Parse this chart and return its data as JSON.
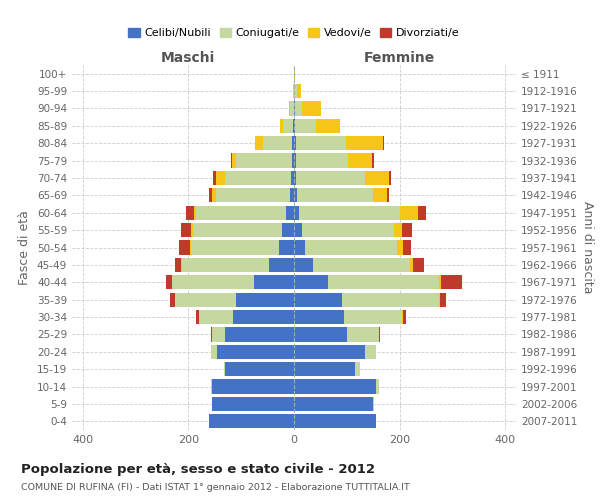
{
  "age_groups": [
    "0-4",
    "5-9",
    "10-14",
    "15-19",
    "20-24",
    "25-29",
    "30-34",
    "35-39",
    "40-44",
    "45-49",
    "50-54",
    "55-59",
    "60-64",
    "65-69",
    "70-74",
    "75-79",
    "80-84",
    "85-89",
    "90-94",
    "95-99",
    "100+"
  ],
  "birth_years": [
    "2007-2011",
    "2002-2006",
    "1997-2001",
    "1992-1996",
    "1987-1991",
    "1982-1986",
    "1977-1981",
    "1972-1976",
    "1967-1971",
    "1962-1966",
    "1957-1961",
    "1952-1956",
    "1947-1951",
    "1942-1946",
    "1937-1941",
    "1932-1936",
    "1927-1931",
    "1922-1926",
    "1917-1921",
    "1912-1916",
    "≤ 1911"
  ],
  "males": {
    "celibe": [
      160,
      155,
      155,
      130,
      145,
      130,
      115,
      110,
      75,
      47,
      29,
      22,
      15,
      8,
      5,
      4,
      3,
      1,
      0,
      0,
      0
    ],
    "coniugato": [
      0,
      0,
      2,
      3,
      12,
      25,
      65,
      115,
      155,
      165,
      165,
      170,
      170,
      140,
      125,
      105,
      55,
      20,
      8,
      2,
      0
    ],
    "vedovo": [
      0,
      0,
      0,
      0,
      0,
      0,
      0,
      0,
      1,
      2,
      3,
      3,
      5,
      8,
      18,
      8,
      15,
      5,
      2,
      0,
      0
    ],
    "divorziato": [
      0,
      0,
      0,
      0,
      0,
      2,
      5,
      10,
      12,
      12,
      20,
      18,
      15,
      5,
      5,
      3,
      0,
      0,
      0,
      0,
      0
    ]
  },
  "females": {
    "nubile": [
      155,
      150,
      155,
      115,
      135,
      100,
      95,
      90,
      65,
      35,
      20,
      15,
      10,
      5,
      4,
      3,
      3,
      2,
      1,
      0,
      0
    ],
    "coniugata": [
      0,
      2,
      5,
      10,
      20,
      60,
      110,
      185,
      210,
      185,
      175,
      175,
      190,
      145,
      130,
      100,
      95,
      40,
      15,
      5,
      0
    ],
    "vedova": [
      0,
      0,
      0,
      0,
      0,
      0,
      1,
      2,
      3,
      5,
      12,
      15,
      35,
      25,
      45,
      45,
      70,
      45,
      35,
      8,
      1
    ],
    "divorziata": [
      0,
      0,
      0,
      0,
      0,
      2,
      5,
      10,
      40,
      20,
      15,
      18,
      15,
      5,
      5,
      3,
      3,
      0,
      0,
      0,
      0
    ]
  },
  "colors": {
    "celibe_nubile": "#4472C4",
    "coniugato_coniugata": "#C5D8A0",
    "vedovo_vedova": "#F5C518",
    "divorziato_divorziata": "#C0392B"
  },
  "title": "Popolazione per età, sesso e stato civile - 2012",
  "subtitle": "COMUNE DI RUFINA (FI) - Dati ISTAT 1° gennaio 2012 - Elaborazione TUTTITALIA.IT",
  "label_maschi": "Maschi",
  "label_femmine": "Femmine",
  "ylabel_left": "Fasce di età",
  "ylabel_right": "Anni di nascita",
  "xlim": 420,
  "xticks": [
    -400,
    -200,
    0,
    200,
    400
  ],
  "legend_labels": [
    "Celibi/Nubili",
    "Coniugati/e",
    "Vedovi/e",
    "Divorziati/e"
  ],
  "bg_color": "#ffffff"
}
